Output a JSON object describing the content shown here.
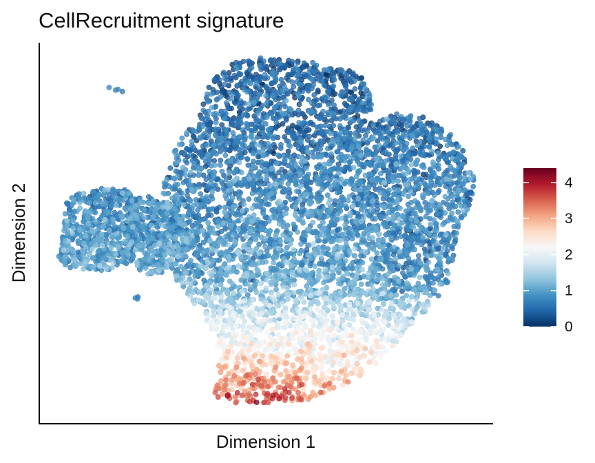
{
  "chart_data": {
    "type": "scatter",
    "title": "CellRecruitment signature",
    "xlabel": "Dimension 1",
    "ylabel": "Dimension 2",
    "x_ticks_shown": false,
    "y_ticks_shown": false,
    "grid": false,
    "colorbar": {
      "placement": "right",
      "min": 0,
      "max": 4.4,
      "ticks": [
        0,
        1,
        2,
        3,
        4
      ],
      "tick_labels": [
        "0",
        "1",
        "2",
        "3",
        "4"
      ],
      "colors": [
        "#053061",
        "#2166ac",
        "#4393c3",
        "#92c5de",
        "#d1e5f0",
        "#f7f7f7",
        "#fddbc7",
        "#f4a582",
        "#d6604d",
        "#b2182b",
        "#67001f"
      ]
    },
    "point_color_note": "RdBu diverging scale (blue = low, red = high)"
  }
}
